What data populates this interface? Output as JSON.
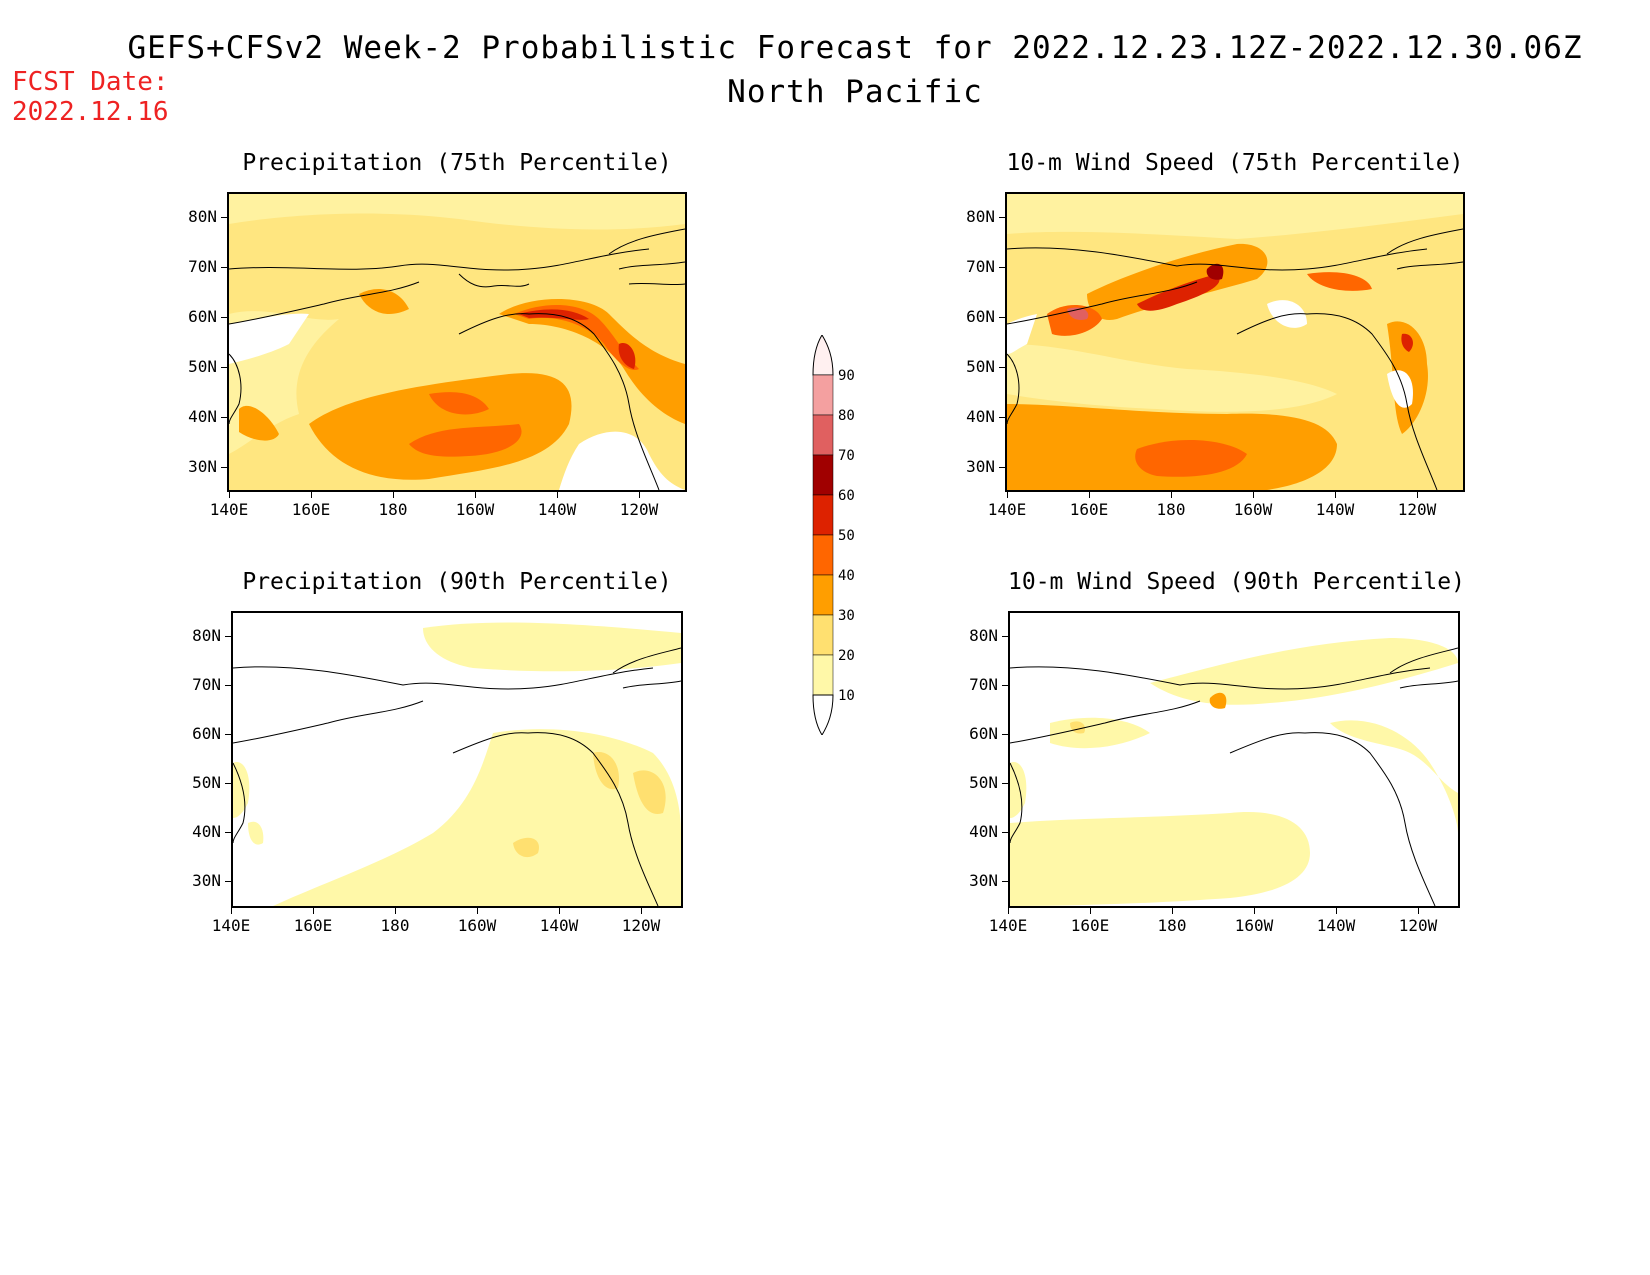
{
  "title": {
    "line1": "GEFS+CFSv2 Week-2 Probabilistic Forecast for 2022.12.23.12Z-2022.12.30.06Z",
    "line2": "North Pacific"
  },
  "fcst": {
    "line1": "FCST Date:",
    "line2": "2022.12.16"
  },
  "panels": [
    {
      "title": "Precipitation (75th Percentile)",
      "variable": "precip",
      "percentile": 75
    },
    {
      "title": "10-m Wind Speed (75th Percentile)",
      "variable": "wind",
      "percentile": 75
    },
    {
      "title": "Precipitation (90th Percentile)",
      "variable": "precip",
      "percentile": 90
    },
    {
      "title": "10-m Wind Speed (90th Percentile)",
      "variable": "wind",
      "percentile": 90
    }
  ],
  "axes": {
    "lat_labels": [
      "80N",
      "70N",
      "60N",
      "50N",
      "40N",
      "30N"
    ],
    "lon_labels": [
      "140E",
      "160E",
      "180",
      "160W",
      "140W",
      "120W"
    ]
  },
  "colorbar": {
    "labels": [
      "90",
      "80",
      "70",
      "60",
      "50",
      "40",
      "30",
      "20",
      "10"
    ],
    "colors": [
      "#fff0f0",
      "#f4a0a0",
      "#e06060",
      "#a00000",
      "#dd2200",
      "#ff6600",
      "#ff9e00",
      "#ffe070",
      "#fff8a8"
    ]
  }
}
